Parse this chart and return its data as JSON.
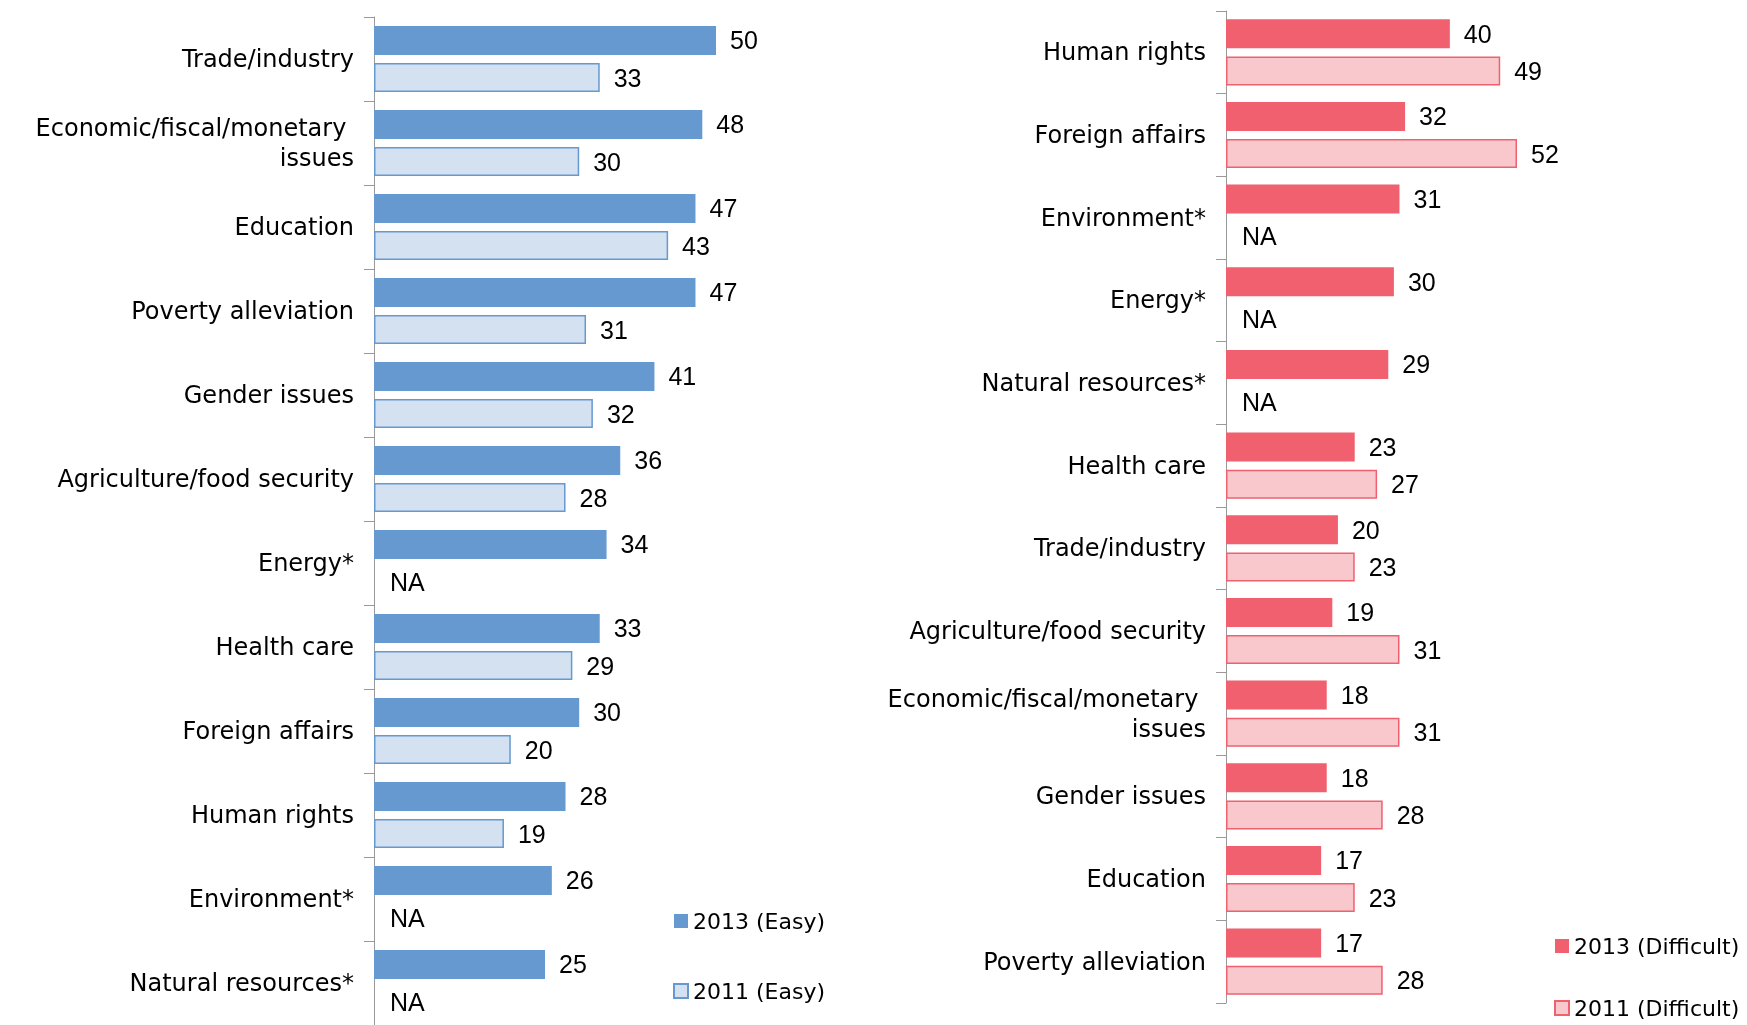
{
  "chart_data": [
    {
      "type": "bar",
      "orientation": "horizontal",
      "grid": false,
      "legend": "bottom right",
      "categories": [
        "Trade/industry",
        "Economic/fiscal/monetary issues",
        "Education",
        "Poverty alleviation",
        "Gender issues",
        "Agriculture/food security",
        "Energy*",
        "Health care",
        "Foreign affairs",
        "Human rights",
        "Environment*",
        "Natural resources*"
      ],
      "series": [
        {
          "name": "2013 (Easy)",
          "color": "#6699d0",
          "values": [
            50,
            48,
            47,
            47,
            41,
            36,
            34,
            33,
            30,
            28,
            26,
            25
          ],
          "value_labels": [
            "50",
            "48",
            "47",
            "47",
            "41",
            "36",
            "34",
            "33",
            "30",
            "28",
            "26",
            "25"
          ]
        },
        {
          "name": "2011 (Easy)",
          "color": "#d3e1f1",
          "values": [
            33,
            30,
            43,
            31,
            32,
            28,
            null,
            29,
            20,
            19,
            null,
            null
          ],
          "value_labels": [
            "33",
            "30",
            "43",
            "31",
            "32",
            "28",
            "NA",
            "29",
            "20",
            "19",
            "NA",
            "NA"
          ]
        }
      ]
    },
    {
      "type": "bar",
      "orientation": "horizontal",
      "grid": false,
      "legend": "bottom right",
      "categories": [
        "Human rights",
        "Foreign affairs",
        "Environment*",
        "Energy*",
        "Natural resources*",
        "Health care",
        "Trade/industry",
        "Agriculture/food security",
        "Economic/fiscal/monetary issues",
        "Gender issues",
        "Education",
        "Poverty alleviation"
      ],
      "series": [
        {
          "name": "2013 (Difficult)",
          "color": "#f0606e",
          "values": [
            40,
            32,
            31,
            30,
            29,
            23,
            20,
            19,
            18,
            18,
            17,
            17
          ],
          "value_labels": [
            "40",
            "32",
            "31",
            "30",
            "29",
            "23",
            "20",
            "19",
            "18",
            "18",
            "17",
            "17"
          ]
        },
        {
          "name": "2011 (Difficult)",
          "color": "#f8c8cc",
          "values": [
            49,
            52,
            null,
            null,
            null,
            27,
            23,
            31,
            31,
            28,
            23,
            28
          ],
          "value_labels": [
            "49",
            "52",
            "NA",
            "NA",
            "NA",
            "27",
            "23",
            "31",
            "31",
            "28",
            "23",
            "28"
          ]
        }
      ]
    }
  ]
}
